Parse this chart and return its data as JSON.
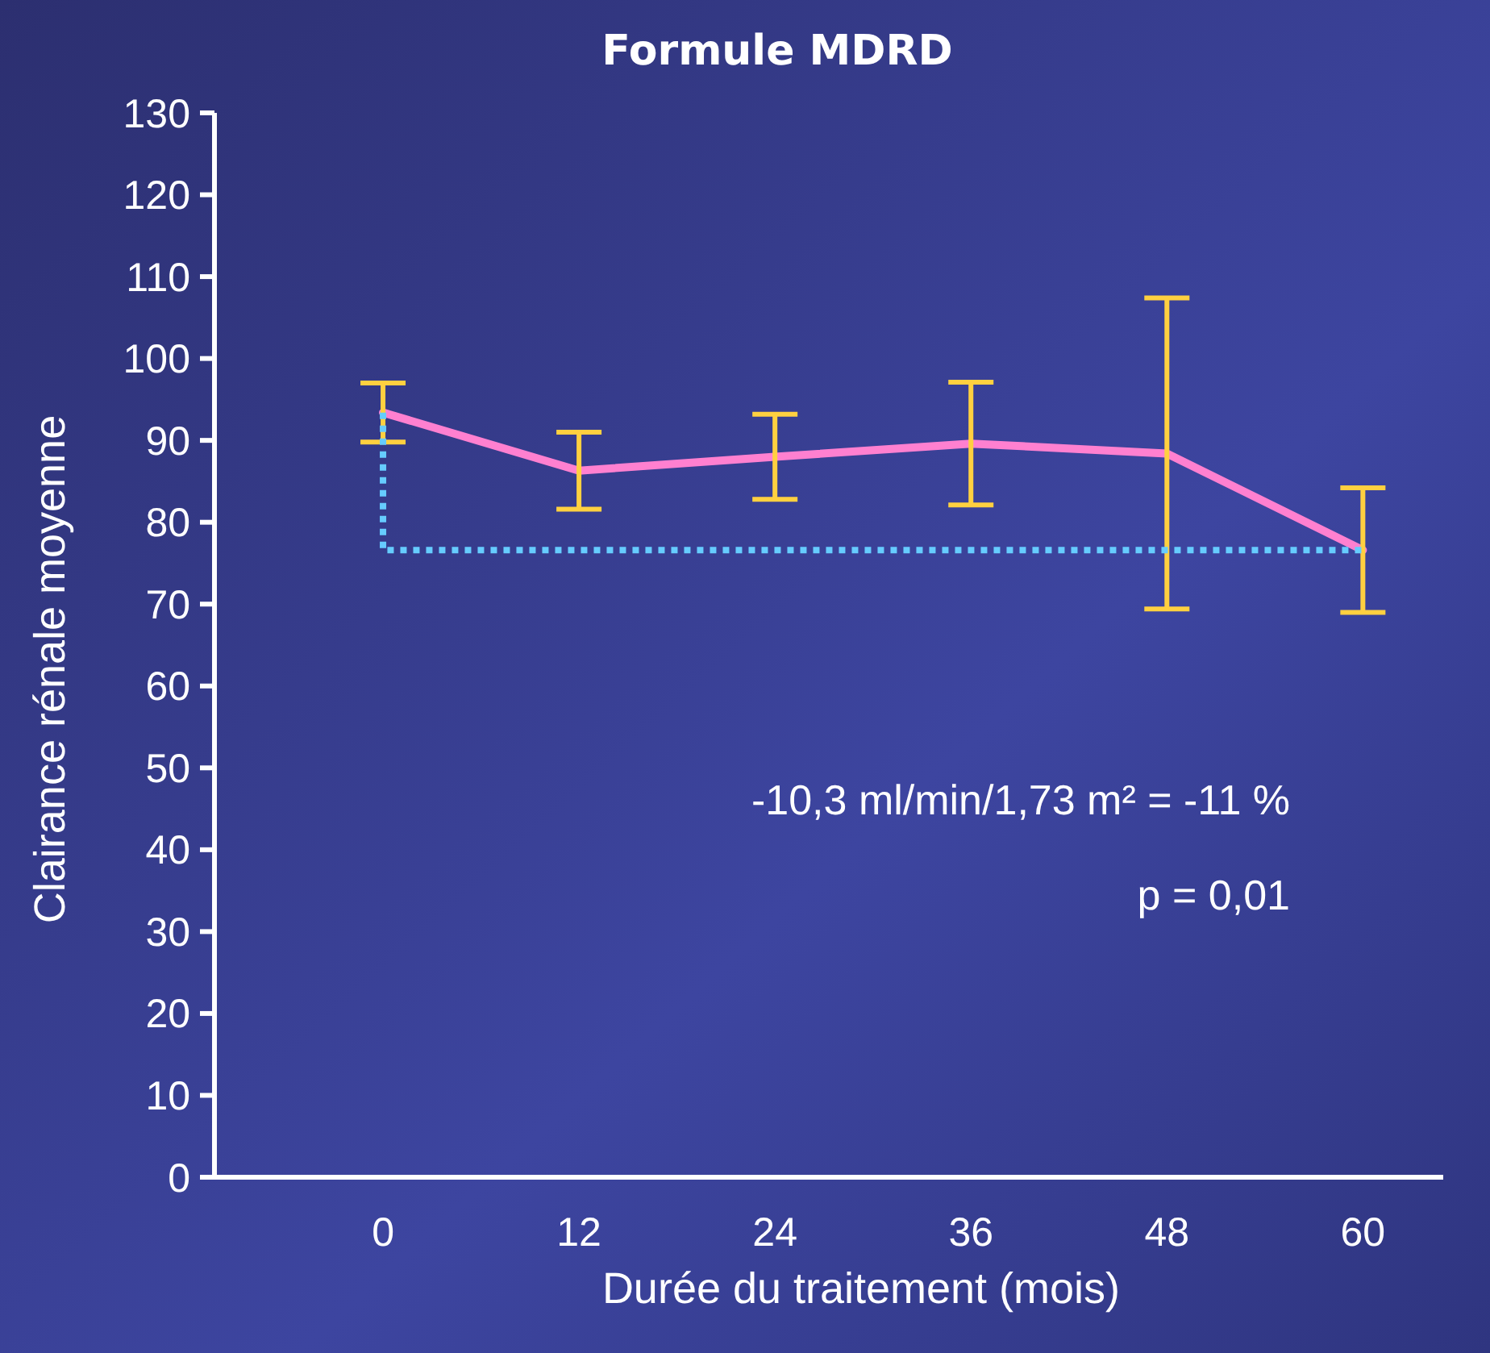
{
  "chart_data": {
    "type": "line",
    "title": "Formule MDRD",
    "xlabel": "Durée du traitement (mois)",
    "ylabel": "Clairance rénale moyenne",
    "categories": [
      "0",
      "12",
      "24",
      "36",
      "48",
      "60"
    ],
    "series": [
      {
        "color": "#ff80d0",
        "colors": [
          "#ffd040",
          "#ffd040",
          "#ffd040",
          "#ffd040",
          "#ffd040",
          "#ffd040"
        ],
        "values": [
          93.4,
          86.3,
          88.0,
          89.6,
          88.4,
          76.6
        ],
        "errors": [
          3.6,
          4.7,
          5.2,
          7.5,
          19,
          7.6
        ]
      },
      {
        "type": "line",
        "color": "#66ccff",
        "line_style": "dotted",
        "x": [
          "0",
          "0",
          "60"
        ],
        "values": [
          93.4,
          76.6,
          76.6
        ]
      }
    ],
    "ylim": [
      0,
      130
    ],
    "yticks": [
      0,
      10,
      20,
      30,
      40,
      50,
      60,
      70,
      80,
      90,
      100,
      110,
      120,
      130
    ],
    "grid": false,
    "marker": "none",
    "line_style": "solid",
    "annotations": [
      "-10,3 ml/min/1,73 m² = -11 %",
      "p = 0,01"
    ]
  }
}
